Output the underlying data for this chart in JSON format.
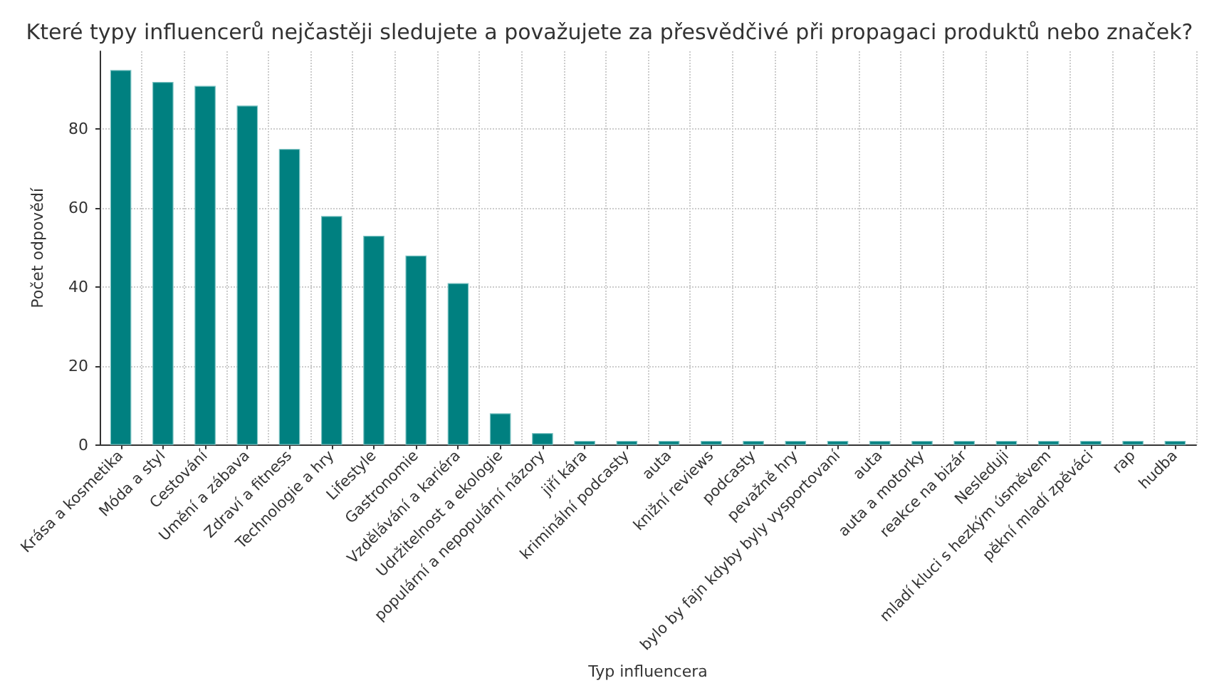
{
  "chart_data": {
    "type": "bar",
    "title": "Které typy influencerů nejčastěji sledujete a považujete za přesvědčivé při propagaci produktů nebo značek?",
    "xlabel": "Typ influencera",
    "ylabel": "Počet odpovědí",
    "categories": [
      "Krása a kosmetika",
      "Móda a styl",
      "Cestování",
      "Umění a zábava",
      "Zdraví a fitness",
      "Technologie a hry",
      "Lifestyle",
      "Gastronomie",
      "Vzdělávání a kariéra",
      "Udržitelnost a ekologie",
      "populární a nepopulární názory",
      "jiří kára",
      "kriminální podcasty",
      "auta",
      "knižní reviews",
      "podcasty",
      "pevažně hry",
      "bylo by fajn kdyby byly vysportovaní",
      "auta",
      "auta a motorky",
      "reakce na bizár",
      "Nesleduji",
      "mladí kluci s hezkým úsměvem",
      "pěkní mladí zpěváci",
      "rap",
      "hudba"
    ],
    "values": [
      95,
      92,
      91,
      86,
      75,
      58,
      53,
      48,
      41,
      8,
      3,
      1,
      1,
      1,
      1,
      1,
      1,
      1,
      1,
      1,
      1,
      1,
      1,
      1,
      1,
      1
    ],
    "color": "#008080",
    "ylim": [
      0,
      99.75
    ],
    "yticks": [
      0,
      20,
      40,
      60,
      80
    ],
    "grid": true
  }
}
